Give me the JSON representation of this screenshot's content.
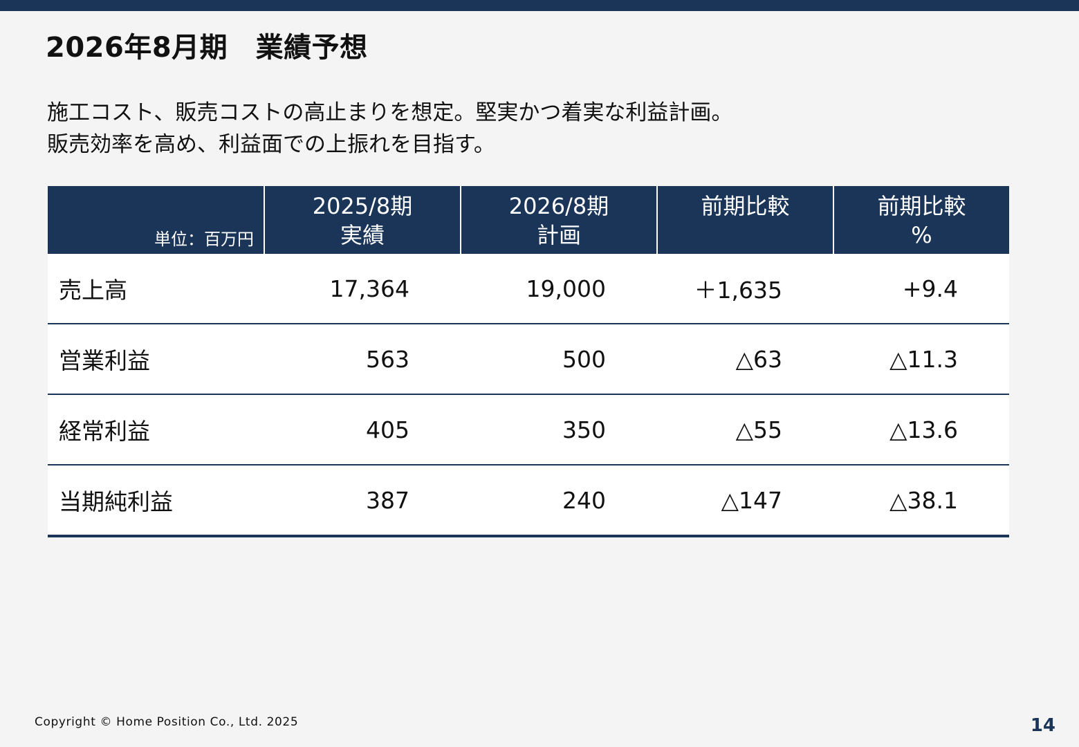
{
  "title": "2026年8月期　業績予想",
  "lead": [
    "施工コスト、販売コストの高止まりを想定。堅実かつ着実な利益計画。",
    "販売効率を高め、利益面での上振れを目指す。"
  ],
  "table": {
    "unit": "単位：百万円",
    "headers": [
      [
        "2025/8期",
        "実績"
      ],
      [
        "2026/8期",
        "計画"
      ],
      [
        "前期比較",
        ""
      ],
      [
        "前期比較",
        "%"
      ]
    ],
    "rows": [
      {
        "label": "売上高",
        "values": [
          "17,364",
          "19,000",
          "＋1,635",
          "+9.4"
        ]
      },
      {
        "label": "営業利益",
        "values": [
          "563",
          "500",
          "△63",
          "△11.3"
        ]
      },
      {
        "label": "経常利益",
        "values": [
          "405",
          "350",
          "△55",
          "△13.6"
        ]
      },
      {
        "label": "当期純利益",
        "values": [
          "387",
          "240",
          "△147",
          "△38.1"
        ]
      }
    ]
  },
  "footer": {
    "copyright": "Copyright © Home Position Co., Ltd. 2025",
    "page": "14"
  },
  "colors": {
    "navy": "#1a3558",
    "background": "#f4f4f4"
  }
}
